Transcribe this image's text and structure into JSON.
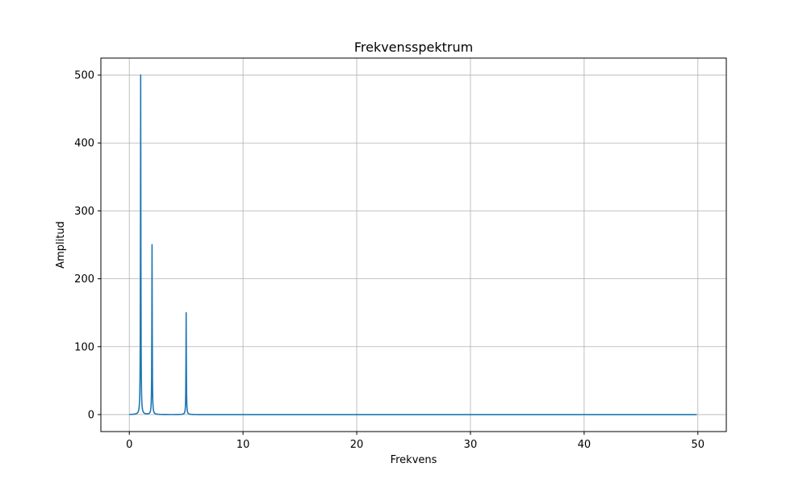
{
  "chart_data": {
    "type": "line",
    "title": "Frekvensspektrum",
    "xlabel": "Frekvens",
    "ylabel": "Amplitud",
    "xlim": [
      -2.5,
      52.5
    ],
    "ylim": [
      -25,
      525
    ],
    "xticks": [
      0,
      10,
      20,
      30,
      40,
      50
    ],
    "yticks": [
      0,
      100,
      200,
      300,
      400,
      500
    ],
    "grid": true,
    "series": [
      {
        "color": "#1f77b4",
        "peaks": [
          {
            "x": 1,
            "y": 500
          },
          {
            "x": 2,
            "y": 250
          },
          {
            "x": 5,
            "y": 150
          }
        ],
        "x_range": [
          0,
          49.9
        ]
      }
    ]
  }
}
